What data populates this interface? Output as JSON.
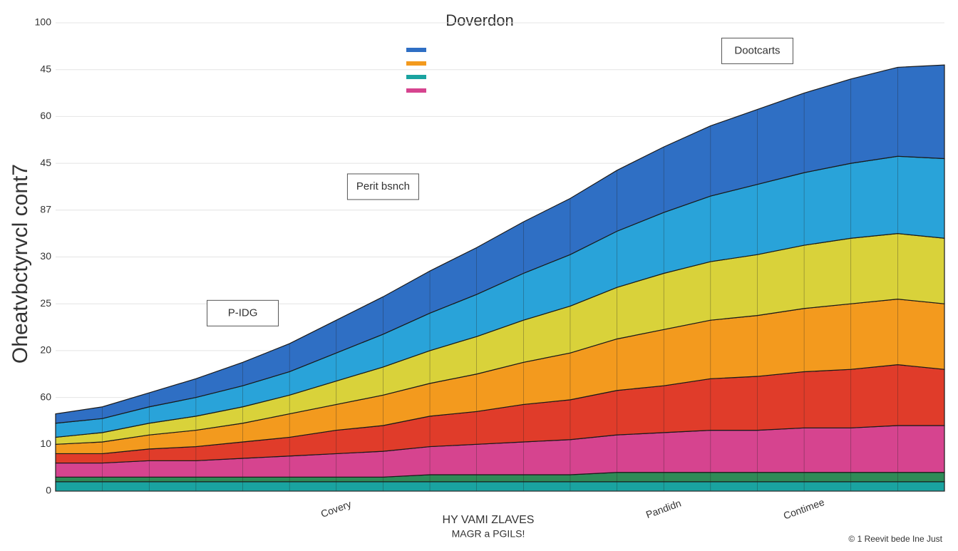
{
  "chart_data": {
    "type": "stacked_area",
    "title": "Doverdon",
    "ylabel": "Oheatvbctyrvcl cont7",
    "xlabel": "HY VAMI ZLAVES",
    "subtitle": "MAGR a PGILS!",
    "footer": "© 1 Reevit bede Ine Just",
    "categories": [
      null,
      null,
      null,
      null,
      null,
      null,
      "Covery",
      null,
      null,
      null,
      null,
      null,
      null,
      "Pandidn",
      null,
      null,
      "Contimee",
      null,
      null,
      null
    ],
    "ylim": [
      0,
      100
    ],
    "yticks": [
      0,
      10,
      {
        "value": 20,
        "label": "60"
      },
      {
        "value": 30,
        "label": "20"
      },
      {
        "value": 40,
        "label": "25"
      },
      {
        "value": 50,
        "label": "30"
      },
      {
        "value": 60,
        "label": "87"
      },
      {
        "value": 70,
        "label": "45"
      },
      {
        "value": 80,
        "label": "60"
      },
      {
        "value": 90,
        "label": "45"
      },
      100
    ],
    "grid": true,
    "annotations": [
      {
        "text": "P-IDG",
        "x": 4,
        "y": 38
      },
      {
        "text": "Perit bsnch",
        "x": 7,
        "y": 65
      },
      {
        "text": "Dootcarts",
        "x": 15,
        "y": 94
      }
    ],
    "series": [
      {
        "color": "#1aa3a0",
        "values": [
          2,
          2,
          2,
          2,
          2,
          2,
          2,
          2,
          2,
          2,
          2,
          2,
          2,
          2,
          2,
          2,
          2,
          2,
          2,
          2
        ]
      },
      {
        "color": "#2e8b57",
        "values": [
          1,
          1,
          1,
          1,
          1,
          1,
          1,
          1,
          1.5,
          1.5,
          1.5,
          1.5,
          2,
          2,
          2,
          2,
          2,
          2,
          2,
          2
        ]
      },
      {
        "color": "#d6448f",
        "values": [
          3,
          3,
          3.5,
          3.5,
          4,
          4.5,
          5,
          5.5,
          6,
          6.5,
          7,
          7.5,
          8,
          8.5,
          9,
          9,
          9.5,
          9.5,
          10,
          10
        ]
      },
      {
        "color": "#e03c2a",
        "values": [
          2,
          2,
          2.5,
          3,
          3.5,
          4,
          5,
          5.5,
          6.5,
          7,
          8,
          8.5,
          9.5,
          10,
          11,
          11.5,
          12,
          12.5,
          13,
          12
        ]
      },
      {
        "color": "#f39a1e",
        "values": [
          2,
          2.5,
          3,
          3.5,
          4,
          5,
          5.5,
          6.5,
          7,
          8,
          9,
          10,
          11,
          12,
          12.5,
          13,
          13.5,
          14,
          14,
          14
        ]
      },
      {
        "color": "#d9d23a",
        "values": [
          1.5,
          2,
          2.5,
          3,
          3.5,
          4,
          5,
          6,
          7,
          8,
          9,
          10,
          11,
          12,
          12.5,
          13,
          13.5,
          14,
          14,
          14
        ]
      },
      {
        "color": "#29a3d9",
        "values": [
          3,
          3,
          3.5,
          4,
          4.5,
          5,
          6,
          7,
          8,
          9,
          10,
          11,
          12,
          13,
          14,
          15,
          15.5,
          16,
          16.5,
          17
        ]
      },
      {
        "color": "#2f6fc4",
        "values": [
          2,
          2.5,
          3,
          4,
          5,
          6,
          7,
          8,
          9,
          10,
          11,
          12,
          13,
          14,
          15,
          16,
          17,
          18,
          19,
          20
        ]
      }
    ]
  }
}
